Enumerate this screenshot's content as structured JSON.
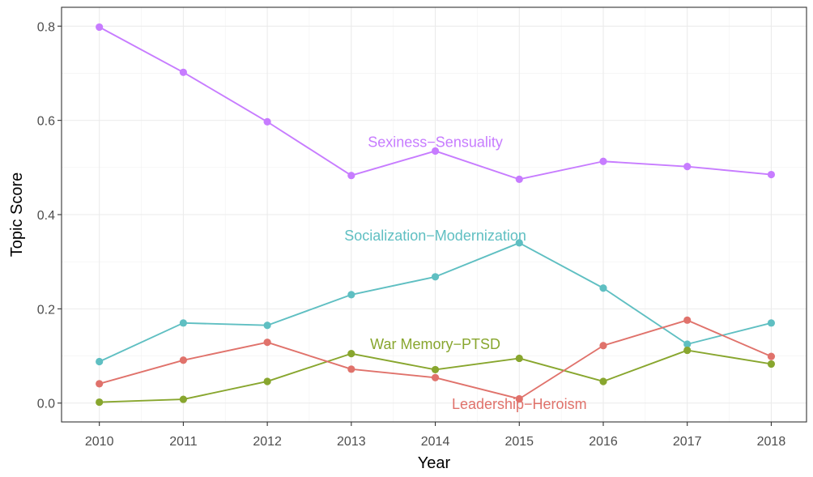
{
  "chart_data": {
    "type": "line",
    "title": "",
    "xlabel": "Year",
    "ylabel": "Topic Score",
    "x": [
      2010,
      2011,
      2012,
      2013,
      2014,
      2015,
      2016,
      2017,
      2018
    ],
    "x_tick_labels": [
      "2010",
      "2011",
      "2012",
      "2013",
      "2014",
      "2015",
      "2016",
      "2017",
      "2018"
    ],
    "y_ticks": [
      0.0,
      0.2,
      0.4,
      0.6,
      0.8
    ],
    "y_tick_labels": [
      "0.0",
      "0.2",
      "0.4",
      "0.6",
      "0.8"
    ],
    "xlim": [
      2009.55,
      2018.42
    ],
    "ylim": [
      -0.04,
      0.84
    ],
    "grid": true,
    "legend": "none (direct labels)",
    "series": [
      {
        "name": "Sexiness−Sensuality",
        "color": "#C77CFF",
        "values": [
          0.798,
          0.702,
          0.597,
          0.483,
          0.535,
          0.475,
          0.513,
          0.502,
          0.485
        ],
        "label_anchor": {
          "x": 2014.0,
          "y": 0.554
        }
      },
      {
        "name": "Socialization−Modernization",
        "color": "#5FBFC2",
        "values": [
          0.088,
          0.17,
          0.165,
          0.23,
          0.268,
          0.34,
          0.244,
          0.125,
          0.17
        ],
        "label_anchor": {
          "x": 2014.0,
          "y": 0.355
        }
      },
      {
        "name": "War Memory−PTSD",
        "color": "#88A62E",
        "values": [
          0.002,
          0.008,
          0.046,
          0.105,
          0.071,
          0.095,
          0.046,
          0.112,
          0.083
        ],
        "label_anchor": {
          "x": 2014.0,
          "y": 0.125
        }
      },
      {
        "name": "Leadership−Heroism",
        "color": "#E0726B",
        "values": [
          0.041,
          0.091,
          0.129,
          0.072,
          0.054,
          0.009,
          0.122,
          0.176,
          0.099
        ],
        "label_anchor": {
          "x": 2015.0,
          "y": -0.002
        }
      }
    ]
  }
}
